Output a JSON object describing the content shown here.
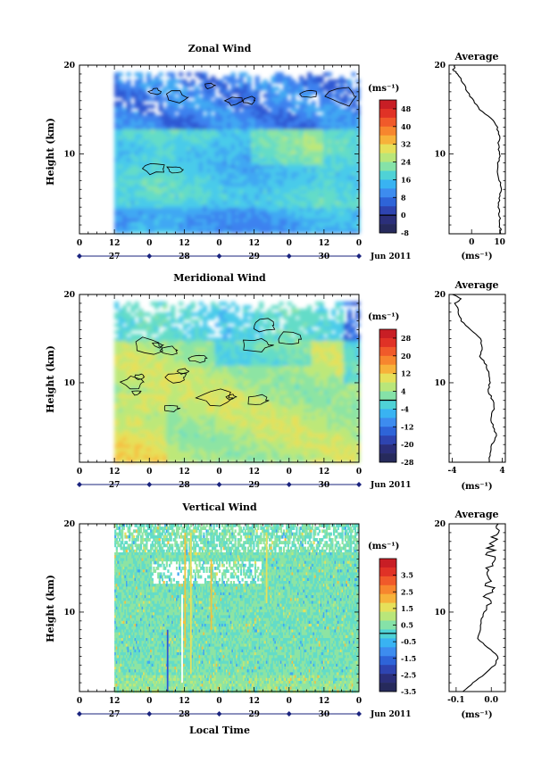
{
  "chart_data": {
    "type": "heatmap",
    "x_axis": {
      "label": "Local Time",
      "tick_labels": [
        "0",
        "12",
        "0",
        "12",
        "0",
        "12",
        "0",
        "12",
        "0"
      ],
      "date_labels": [
        "27",
        "28",
        "29",
        "30"
      ],
      "month_label": "Jun 2011"
    },
    "panels": [
      {
        "title": "Zonal Wind",
        "ylabel": "Height (km)",
        "ylim": [
          1,
          20
        ],
        "yticks": [
          10,
          20
        ],
        "colorbar": {
          "unit": "(ms⁻¹)",
          "ticks": [
            "48",
            "40",
            "32",
            "24",
            "16",
            "8",
            "0",
            "-8"
          ],
          "min": -8,
          "max": 52
        },
        "data_start_hour": 12,
        "notes": "Mostly 5-25 ms⁻¹ below 14 km; stronger flow and data gaps above 14 km; negative contours near 7-8 km at hour 27 and near 17-19 km.",
        "average": {
          "title": "Average",
          "xlabel": "(ms⁻¹)",
          "xticks": [
            "0",
            "10"
          ],
          "xlim": [
            -8,
            12
          ],
          "heights": [
            1,
            2,
            3,
            4,
            5,
            6,
            7,
            8,
            9,
            10,
            11,
            12,
            13,
            14,
            15,
            16,
            17,
            18,
            19,
            19.5,
            20
          ],
          "values": [
            10.5,
            10,
            10,
            9.5,
            10,
            10.5,
            10,
            9,
            9.5,
            10,
            9.5,
            10,
            9,
            7,
            3,
            0.5,
            -1.5,
            -3,
            -5,
            -6.5,
            -6
          ]
        }
      },
      {
        "title": "Meridional Wind",
        "ylabel": "Height (km)",
        "ylim": [
          1,
          20
        ],
        "yticks": [
          10,
          20
        ],
        "colorbar": {
          "unit": "(ms⁻¹)",
          "ticks": [
            "28",
            "20",
            "12",
            "4",
            "-4",
            "-12",
            "-20",
            "-28"
          ],
          "min": -28,
          "max": 32
        },
        "data_start_hour": 12,
        "notes": "Positive 8-16 ms⁻¹ below 14 km with patches of negative values enclosed by zero contours; negative values above 15 km.",
        "average": {
          "title": "Average",
          "xlabel": "(ms⁻¹)",
          "xticks": [
            "-4",
            "4"
          ],
          "xlim": [
            -4.5,
            4.5
          ],
          "heights": [
            1,
            2,
            3,
            4,
            5,
            6,
            7,
            8,
            9,
            10,
            11,
            12,
            13,
            14,
            15,
            16,
            17,
            18,
            19,
            19.5,
            20
          ],
          "values": [
            2,
            2,
            2.3,
            3.2,
            2.5,
            2.2,
            2.6,
            2.5,
            1.8,
            2,
            1.8,
            1.5,
            0.5,
            0.8,
            0.5,
            -1,
            -2.5,
            -3,
            -3.5,
            -2.5,
            -4
          ]
        }
      },
      {
        "title": "Vertical Wind",
        "ylabel": "Height (km)",
        "ylim": [
          1,
          20
        ],
        "yticks": [
          10,
          20
        ],
        "colorbar": {
          "unit": "(ms⁻¹)",
          "ticks": [
            "3.5",
            "2.5",
            "1.5",
            "0.5",
            "-0.5",
            "-1.5",
            "-2.5",
            "-3.5"
          ],
          "min": -3.5,
          "max": 4.5
        },
        "data_start_hour": 12,
        "notes": "Values mostly -0.5 to 0.5 ms⁻¹ with narrow vertical streaks of stronger updrafts near hours 34-38.",
        "average": {
          "title": "Average",
          "xlabel": "(ms⁻¹)",
          "xticks": [
            "-0.1",
            "0.0"
          ],
          "xlim": [
            -0.12,
            0.04
          ],
          "heights": [
            1,
            2,
            3,
            4,
            5,
            6,
            7,
            8,
            9,
            10,
            11,
            12,
            13,
            14,
            15,
            16,
            17,
            18,
            19,
            20
          ],
          "values": [
            -0.08,
            -0.05,
            -0.02,
            0.01,
            0.02,
            -0.01,
            -0.04,
            -0.03,
            -0.03,
            -0.02,
            -0.01,
            -0.015,
            -0.005,
            -0.01,
            0.0,
            0.005,
            -0.005,
            0.01,
            0.015,
            0.02
          ]
        }
      }
    ]
  }
}
